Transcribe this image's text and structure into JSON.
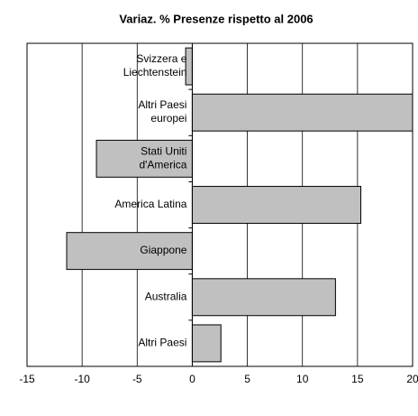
{
  "chart_data": {
    "type": "bar",
    "orientation": "horizontal",
    "title": "Variaz. % Presenze rispetto al 2006",
    "categories": [
      [
        "Svizzera e",
        "Liechtenstein"
      ],
      [
        "Altri Paesi",
        "europei"
      ],
      [
        "Stati Uniti",
        "d'America"
      ],
      [
        "America Latina"
      ],
      [
        "Giappone"
      ],
      [
        "Australia"
      ],
      [
        "Altri Paesi"
      ]
    ],
    "values": [
      -0.6,
      20,
      -8.7,
      15.3,
      -11.4,
      13,
      2.6
    ],
    "color": "#c0c0c0",
    "xlim": [
      -15,
      20
    ],
    "xticks": [
      -15,
      -10,
      -5,
      0,
      5,
      10,
      15,
      20
    ],
    "grid": true
  }
}
